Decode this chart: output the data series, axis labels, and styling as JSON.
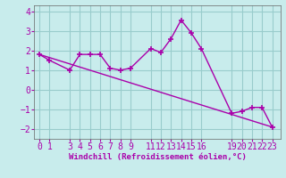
{
  "xlabel": "Windchill (Refroidissement éolien,°C)",
  "background_color": "#c8ecec",
  "line_color": "#aa00aa",
  "series1_x": [
    0,
    1,
    3,
    4,
    5,
    6,
    7,
    8,
    9,
    11,
    12,
    13,
    14,
    15,
    16,
    19,
    20,
    21,
    22,
    23
  ],
  "series1_y": [
    1.8,
    1.5,
    1.0,
    1.8,
    1.8,
    1.8,
    1.1,
    1.0,
    1.1,
    2.1,
    1.9,
    2.6,
    3.55,
    2.9,
    2.1,
    -1.2,
    -1.1,
    -0.9,
    -0.9,
    -1.9
  ],
  "series2_x": [
    0,
    23
  ],
  "series2_y": [
    1.8,
    -1.9
  ],
  "ylim": [
    -2.5,
    4.3
  ],
  "xlim": [
    -0.5,
    23.8
  ],
  "yticks": [
    -2,
    -1,
    0,
    1,
    2,
    3,
    4
  ],
  "xticks": [
    0,
    1,
    3,
    4,
    5,
    6,
    7,
    8,
    9,
    11,
    12,
    13,
    14,
    15,
    16,
    19,
    20,
    21,
    22,
    23
  ],
  "grid_color": "#99cccc",
  "marker": "+",
  "tick_fontsize": 7
}
